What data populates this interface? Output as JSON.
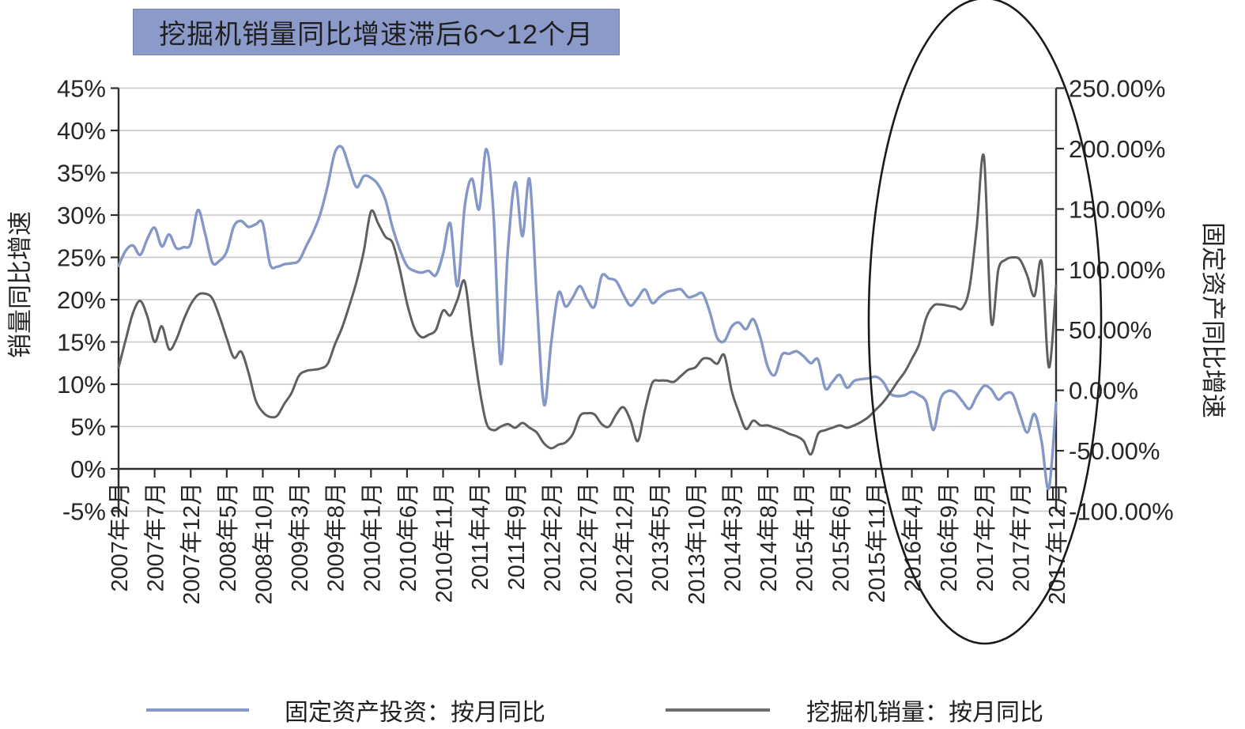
{
  "title": "挖掘机销量同比增速滞后6～12个月",
  "y_axis_left": {
    "title": "销量同比增速",
    "tick_labels": [
      "45%",
      "40%",
      "35%",
      "30%",
      "25%",
      "20%",
      "15%",
      "10%",
      "5%",
      "0%",
      "-5%"
    ],
    "tick_values": [
      45,
      40,
      35,
      30,
      25,
      20,
      15,
      10,
      5,
      0,
      -5
    ],
    "max": 45,
    "min": -5
  },
  "y_axis_right": {
    "title": "固定资产同比增速",
    "tick_labels": [
      "250.00%",
      "200.00%",
      "150.00%",
      "100.00%",
      "50.00%",
      "0.00%",
      "-50.00%",
      "-100.00%"
    ],
    "tick_values": [
      250,
      200,
      150,
      100,
      50,
      0,
      -50,
      -100
    ],
    "max": 250,
    "min": -100
  },
  "x_axis": {
    "tick_labels": [
      "2007年2月",
      "2007年7月",
      "2007年12月",
      "2008年5月",
      "2008年10月",
      "2009年3月",
      "2009年8月",
      "2010年1月",
      "2010年6月",
      "2010年11月",
      "2011年4月",
      "2011年9月",
      "2012年2月",
      "2012年7月",
      "2012年12月",
      "2013年5月",
      "2013年10月",
      "2014年3月",
      "2014年8月",
      "2015年1月",
      "2015年6月",
      "2015年11月",
      "2016年4月",
      "2016年9月",
      "2017年2月",
      "2017年7月",
      "2017年12月"
    ],
    "months_between_ticks": 5
  },
  "legend": [
    {
      "label": "固定资产投资：按月同比",
      "color": "#8497c6"
    },
    {
      "label": "挖掘机销量：按月同比",
      "color": "#6e6e6e"
    }
  ],
  "colors": {
    "fai_line": "#8497c6",
    "excavator_line": "#5f5f5f",
    "gridline": "#c6c6c6",
    "axis": "#2e2e2e",
    "title_bg": "#8b9ac8",
    "ellipse": "#1a1a1a"
  },
  "annotation": {
    "shape": "ellipse",
    "purpose": "highlights 2016-2017 surge in excavator sales vs low fixed-asset investment"
  },
  "chart_data": {
    "type": "line",
    "x_start": "2007年2月",
    "x_end": "2017年12月",
    "frequency": "monthly",
    "n_points": 131,
    "grid": "horizontal",
    "legend_position": "bottom",
    "series": [
      {
        "name": "固定资产投资：按月同比",
        "axis": "left",
        "unit": "%",
        "axis_range": [
          -5,
          45
        ],
        "values": [
          24.0,
          25.8,
          26.4,
          25.3,
          27.2,
          28.5,
          26.3,
          27.7,
          26.1,
          26.2,
          26.6,
          30.6,
          27.8,
          24.4,
          24.6,
          25.7,
          28.7,
          29.3,
          28.6,
          28.9,
          29.0,
          24.2,
          23.9,
          24.2,
          24.3,
          24.6,
          26.3,
          28.0,
          30.2,
          33.5,
          37.4,
          38.0,
          35.6,
          33.3,
          34.6,
          34.4,
          33.6,
          31.8,
          28.5,
          25.9,
          24.0,
          23.4,
          23.2,
          23.4,
          22.9,
          25.4,
          29.0,
          21.6,
          31.0,
          34.3,
          30.7,
          37.8,
          30.0,
          12.4,
          26.0,
          33.9,
          27.5,
          34.2,
          20.0,
          7.6,
          15.0,
          20.8,
          19.2,
          20.3,
          21.6,
          20.0,
          19.2,
          22.8,
          22.5,
          22.2,
          20.6,
          19.3,
          20.2,
          21.2,
          19.6,
          20.3,
          20.9,
          21.1,
          21.2,
          20.3,
          20.5,
          20.7,
          18.5,
          15.5,
          15.1,
          16.8,
          17.3,
          16.5,
          17.7,
          15.5,
          12.1,
          11.1,
          13.5,
          13.6,
          13.9,
          13.3,
          12.5,
          12.9,
          9.5,
          10.3,
          11.1,
          9.6,
          10.4,
          10.6,
          10.7,
          10.9,
          10.3,
          8.9,
          8.6,
          8.7,
          9.1,
          8.7,
          7.9,
          4.6,
          8.3,
          9.2,
          9.0,
          8.0,
          7.1,
          8.6,
          9.8,
          9.4,
          8.2,
          8.9,
          8.8,
          6.4,
          4.3,
          6.5,
          3.2,
          -2.3,
          7.8
        ]
      },
      {
        "name": "挖掘机销量：按月同比",
        "axis": "right",
        "unit": "%",
        "axis_range": [
          -100,
          250
        ],
        "values": [
          19,
          42,
          64,
          74,
          61,
          40,
          53,
          34,
          42,
          58,
          71,
          79,
          80,
          76,
          61,
          43,
          27,
          32,
          15,
          -8,
          -18,
          -22,
          -21,
          -11,
          -2,
          12,
          16,
          17,
          18,
          22,
          38,
          52,
          70,
          90,
          115,
          148,
          138,
          127,
          122,
          100,
          72,
          52,
          44,
          46,
          50,
          66,
          62,
          75,
          90,
          45,
          3,
          -27,
          -33,
          -30,
          -28,
          -31,
          -27,
          -31,
          -35,
          -44,
          -48,
          -45,
          -43,
          -36,
          -21,
          -19,
          -20,
          -28,
          -30,
          -20,
          -14,
          -25,
          -42,
          -16,
          6,
          8,
          8,
          7,
          12,
          17,
          19,
          26,
          26,
          22,
          29,
          0,
          -18,
          -32,
          -25,
          -29,
          -29,
          -31,
          -33,
          -36,
          -38,
          -42,
          -53,
          -36,
          -33,
          -31,
          -29,
          -31,
          -29,
          -26,
          -22,
          -16,
          -10,
          -2,
          7,
          15,
          26,
          38,
          60,
          70,
          71,
          70,
          69,
          68,
          85,
          135,
          193,
          57,
          100,
          108,
          110,
          108,
          95,
          78,
          106,
          19,
          87
        ]
      }
    ]
  }
}
